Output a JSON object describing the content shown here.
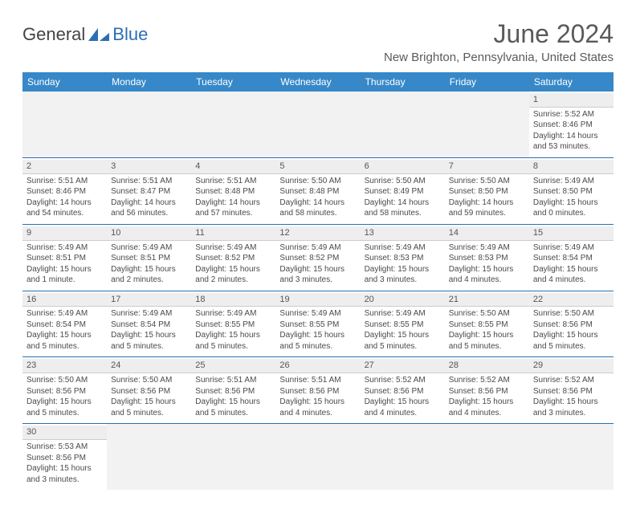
{
  "logo": {
    "text1": "General",
    "text2": "Blue"
  },
  "title": "June 2024",
  "location": "New Brighton, Pennsylvania, United States",
  "colors": {
    "header_bg": "#3788c8",
    "header_fg": "#ffffff",
    "rule": "#2b6fb3",
    "daynum_bg": "#eeeeee",
    "text": "#4a4a4a"
  },
  "day_headers": [
    "Sunday",
    "Monday",
    "Tuesday",
    "Wednesday",
    "Thursday",
    "Friday",
    "Saturday"
  ],
  "weeks": [
    [
      null,
      null,
      null,
      null,
      null,
      null,
      {
        "n": "1",
        "sr": "5:52 AM",
        "ss": "8:46 PM",
        "dl": "14 hours and 53 minutes."
      }
    ],
    [
      {
        "n": "2",
        "sr": "5:51 AM",
        "ss": "8:46 PM",
        "dl": "14 hours and 54 minutes."
      },
      {
        "n": "3",
        "sr": "5:51 AM",
        "ss": "8:47 PM",
        "dl": "14 hours and 56 minutes."
      },
      {
        "n": "4",
        "sr": "5:51 AM",
        "ss": "8:48 PM",
        "dl": "14 hours and 57 minutes."
      },
      {
        "n": "5",
        "sr": "5:50 AM",
        "ss": "8:48 PM",
        "dl": "14 hours and 58 minutes."
      },
      {
        "n": "6",
        "sr": "5:50 AM",
        "ss": "8:49 PM",
        "dl": "14 hours and 58 minutes."
      },
      {
        "n": "7",
        "sr": "5:50 AM",
        "ss": "8:50 PM",
        "dl": "14 hours and 59 minutes."
      },
      {
        "n": "8",
        "sr": "5:49 AM",
        "ss": "8:50 PM",
        "dl": "15 hours and 0 minutes."
      }
    ],
    [
      {
        "n": "9",
        "sr": "5:49 AM",
        "ss": "8:51 PM",
        "dl": "15 hours and 1 minute."
      },
      {
        "n": "10",
        "sr": "5:49 AM",
        "ss": "8:51 PM",
        "dl": "15 hours and 2 minutes."
      },
      {
        "n": "11",
        "sr": "5:49 AM",
        "ss": "8:52 PM",
        "dl": "15 hours and 2 minutes."
      },
      {
        "n": "12",
        "sr": "5:49 AM",
        "ss": "8:52 PM",
        "dl": "15 hours and 3 minutes."
      },
      {
        "n": "13",
        "sr": "5:49 AM",
        "ss": "8:53 PM",
        "dl": "15 hours and 3 minutes."
      },
      {
        "n": "14",
        "sr": "5:49 AM",
        "ss": "8:53 PM",
        "dl": "15 hours and 4 minutes."
      },
      {
        "n": "15",
        "sr": "5:49 AM",
        "ss": "8:54 PM",
        "dl": "15 hours and 4 minutes."
      }
    ],
    [
      {
        "n": "16",
        "sr": "5:49 AM",
        "ss": "8:54 PM",
        "dl": "15 hours and 5 minutes."
      },
      {
        "n": "17",
        "sr": "5:49 AM",
        "ss": "8:54 PM",
        "dl": "15 hours and 5 minutes."
      },
      {
        "n": "18",
        "sr": "5:49 AM",
        "ss": "8:55 PM",
        "dl": "15 hours and 5 minutes."
      },
      {
        "n": "19",
        "sr": "5:49 AM",
        "ss": "8:55 PM",
        "dl": "15 hours and 5 minutes."
      },
      {
        "n": "20",
        "sr": "5:49 AM",
        "ss": "8:55 PM",
        "dl": "15 hours and 5 minutes."
      },
      {
        "n": "21",
        "sr": "5:50 AM",
        "ss": "8:55 PM",
        "dl": "15 hours and 5 minutes."
      },
      {
        "n": "22",
        "sr": "5:50 AM",
        "ss": "8:56 PM",
        "dl": "15 hours and 5 minutes."
      }
    ],
    [
      {
        "n": "23",
        "sr": "5:50 AM",
        "ss": "8:56 PM",
        "dl": "15 hours and 5 minutes."
      },
      {
        "n": "24",
        "sr": "5:50 AM",
        "ss": "8:56 PM",
        "dl": "15 hours and 5 minutes."
      },
      {
        "n": "25",
        "sr": "5:51 AM",
        "ss": "8:56 PM",
        "dl": "15 hours and 5 minutes."
      },
      {
        "n": "26",
        "sr": "5:51 AM",
        "ss": "8:56 PM",
        "dl": "15 hours and 4 minutes."
      },
      {
        "n": "27",
        "sr": "5:52 AM",
        "ss": "8:56 PM",
        "dl": "15 hours and 4 minutes."
      },
      {
        "n": "28",
        "sr": "5:52 AM",
        "ss": "8:56 PM",
        "dl": "15 hours and 4 minutes."
      },
      {
        "n": "29",
        "sr": "5:52 AM",
        "ss": "8:56 PM",
        "dl": "15 hours and 3 minutes."
      }
    ],
    [
      {
        "n": "30",
        "sr": "5:53 AM",
        "ss": "8:56 PM",
        "dl": "15 hours and 3 minutes."
      },
      null,
      null,
      null,
      null,
      null,
      null
    ]
  ],
  "labels": {
    "sunrise": "Sunrise: ",
    "sunset": "Sunset: ",
    "daylight": "Daylight: "
  }
}
